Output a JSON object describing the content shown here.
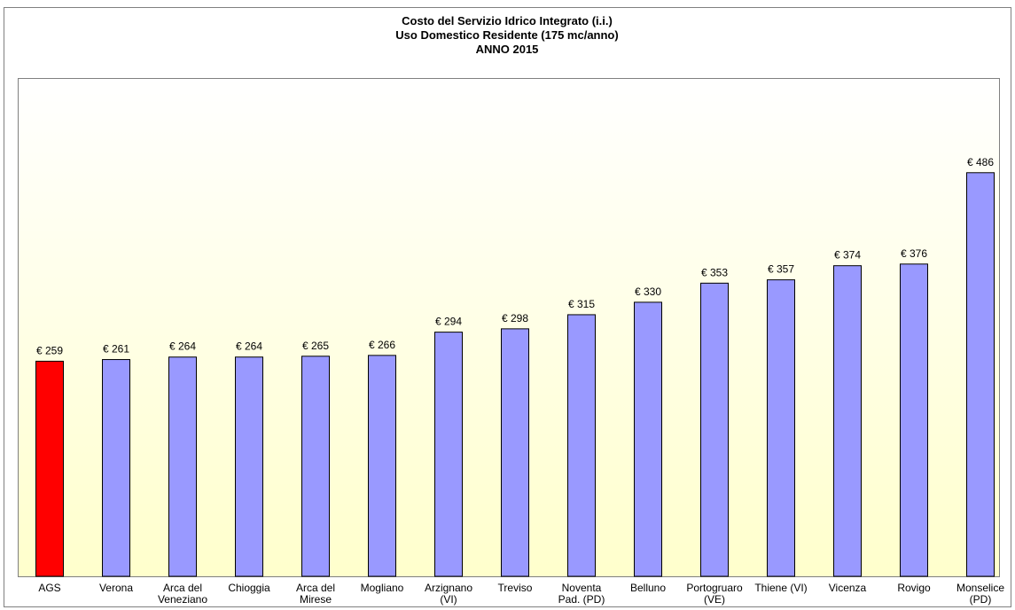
{
  "chart_data": {
    "type": "bar",
    "title": "Costo del Servizio Idrico Integrato (i.i.)",
    "subtitle": [
      "Uso Domestico Residente (175 mc/anno)",
      "ANNO 2015"
    ],
    "categories": [
      "AGS",
      "Verona",
      "Arca del\nVeneziano",
      "Chioggia",
      "Arca del\nMirese",
      "Mogliano",
      "Arzignano\n(VI)",
      "Treviso",
      "Noventa\nPad. (PD)",
      "Belluno",
      "Portogruaro\n(VE)",
      "Thiene (VI)",
      "Vicenza",
      "Rovigo",
      "Monselice\n(PD)"
    ],
    "values": [
      259,
      261,
      264,
      264,
      265,
      266,
      294,
      298,
      315,
      330,
      353,
      357,
      374,
      376,
      486
    ],
    "value_labels": [
      "€ 259",
      "€ 261",
      "€ 264",
      "€ 264",
      "€ 265",
      "€ 266",
      "€ 294",
      "€ 298",
      "€ 315",
      "€ 330",
      "€ 353",
      "€ 357",
      "€ 374",
      "€ 376",
      "€ 486"
    ],
    "colors": [
      "#ff0000",
      "#9999ff",
      "#9999ff",
      "#9999ff",
      "#9999ff",
      "#9999ff",
      "#9999ff",
      "#9999ff",
      "#9999ff",
      "#9999ff",
      "#9999ff",
      "#9999ff",
      "#9999ff",
      "#9999ff",
      "#9999ff"
    ],
    "ylim": [
      0,
      600
    ]
  }
}
